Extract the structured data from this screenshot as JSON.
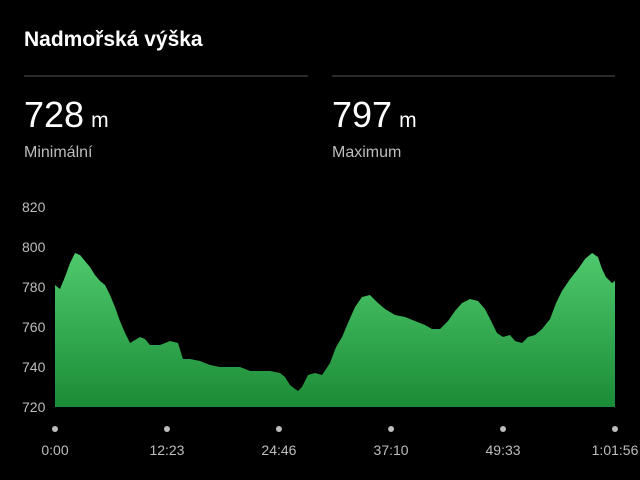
{
  "chart_data": {
    "type": "area",
    "title": "Nadmořská výška",
    "stats": [
      {
        "value": 728,
        "unit": "m",
        "label": "Minimální"
      },
      {
        "value": 797,
        "unit": "m",
        "label": "Maximum"
      }
    ],
    "x": [
      0,
      33,
      66,
      100,
      133,
      166,
      199,
      232,
      265,
      299,
      332,
      365,
      398,
      431,
      465,
      498,
      564,
      597,
      630,
      697,
      730,
      763,
      816,
      849,
      896,
      962,
      1029,
      1095,
      1161,
      1228,
      1294,
      1360,
      1427,
      1493,
      1526,
      1559,
      1593,
      1613,
      1639,
      1679,
      1725,
      1772,
      1825,
      1865,
      1905,
      1944,
      1991,
      2037,
      2090,
      2143,
      2190,
      2256,
      2323,
      2389,
      2455,
      2502,
      2555,
      2608,
      2654,
      2701,
      2754,
      2807,
      2853,
      2887,
      2933,
      2973,
      3019,
      3053,
      3099,
      3139,
      3185,
      3232,
      3285,
      3325,
      3364,
      3418,
      3471,
      3517,
      3564,
      3603,
      3630,
      3656,
      3696,
      3716
    ],
    "values": [
      781,
      779,
      785,
      792,
      797,
      796,
      793,
      790,
      786,
      783,
      781,
      776,
      770,
      763,
      757,
      752,
      755,
      754,
      751,
      751,
      752,
      753,
      752,
      744,
      744,
      743,
      741,
      740,
      740,
      740,
      738,
      738,
      738,
      737,
      735,
      731,
      729,
      728,
      730,
      736,
      737,
      736,
      742,
      750,
      755,
      762,
      770,
      775,
      776,
      772,
      769,
      766,
      765,
      763,
      761,
      759,
      759,
      763,
      768,
      772,
      774,
      773,
      769,
      764,
      757,
      755,
      756,
      753,
      752,
      755,
      756,
      759,
      764,
      772,
      778,
      784,
      789,
      794,
      797,
      795,
      789,
      785,
      782,
      783
    ],
    "color_top": "#4fc96d",
    "color_bottom": "#1b8c36",
    "xlim": [
      0,
      3716
    ],
    "xticks": [
      {
        "value": 0,
        "label": "0:00"
      },
      {
        "value": 743,
        "label": "12:23"
      },
      {
        "value": 1486,
        "label": "24:46"
      },
      {
        "value": 2230,
        "label": "37:10"
      },
      {
        "value": 2973,
        "label": "49:33"
      },
      {
        "value": 3716,
        "label": "1:01:56"
      }
    ],
    "ylim": [
      720,
      820
    ],
    "yticks": [
      720,
      740,
      760,
      780,
      800,
      820
    ]
  }
}
